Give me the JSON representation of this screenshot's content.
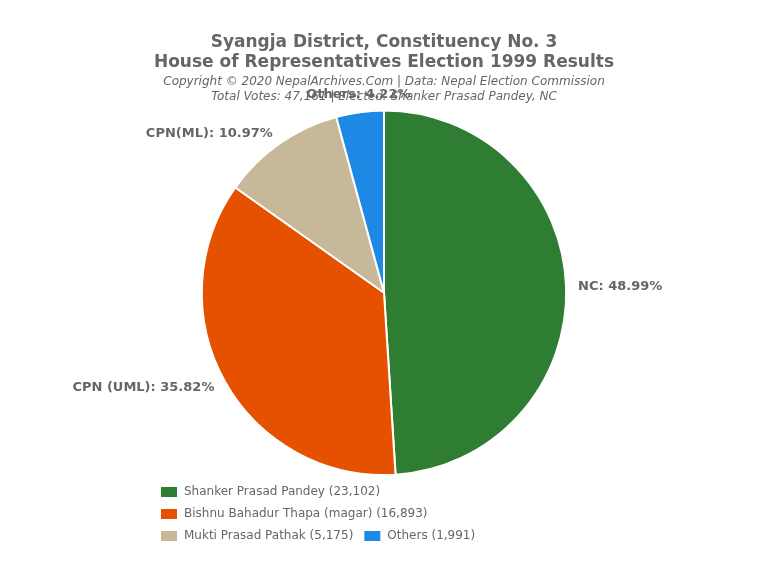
{
  "chart_data": {
    "type": "pie",
    "title": [
      "Syangja District, Constituency No. 3",
      "House of Representatives Election 1999 Results"
    ],
    "subtitle": [
      "Copyright © 2020 NepalArchives.Com | Data: Nepal Election Commission",
      "Total Votes: 47,161 | Elected: Shanker Prasad Pandey, NC"
    ],
    "categories": [
      "Shanker Prasad Pandey (23,102)",
      "Bishnu Bahadur Thapa (magar) (16,893)",
      "Mukti Prasad Pathak (5,175)",
      "Others (1,991)"
    ],
    "values": [
      48.99,
      35.82,
      10.97,
      4.22
    ],
    "value_labels": [
      "NC: 48.99%",
      "CPN (UML): 35.82%",
      "CPN(ML): 10.97%",
      "Others: 4.22%"
    ],
    "colors": [
      "#2e7d32",
      "#e65100",
      "#c8b89a",
      "#1e88e5"
    ],
    "data_labels": true,
    "legend": "lower left"
  }
}
